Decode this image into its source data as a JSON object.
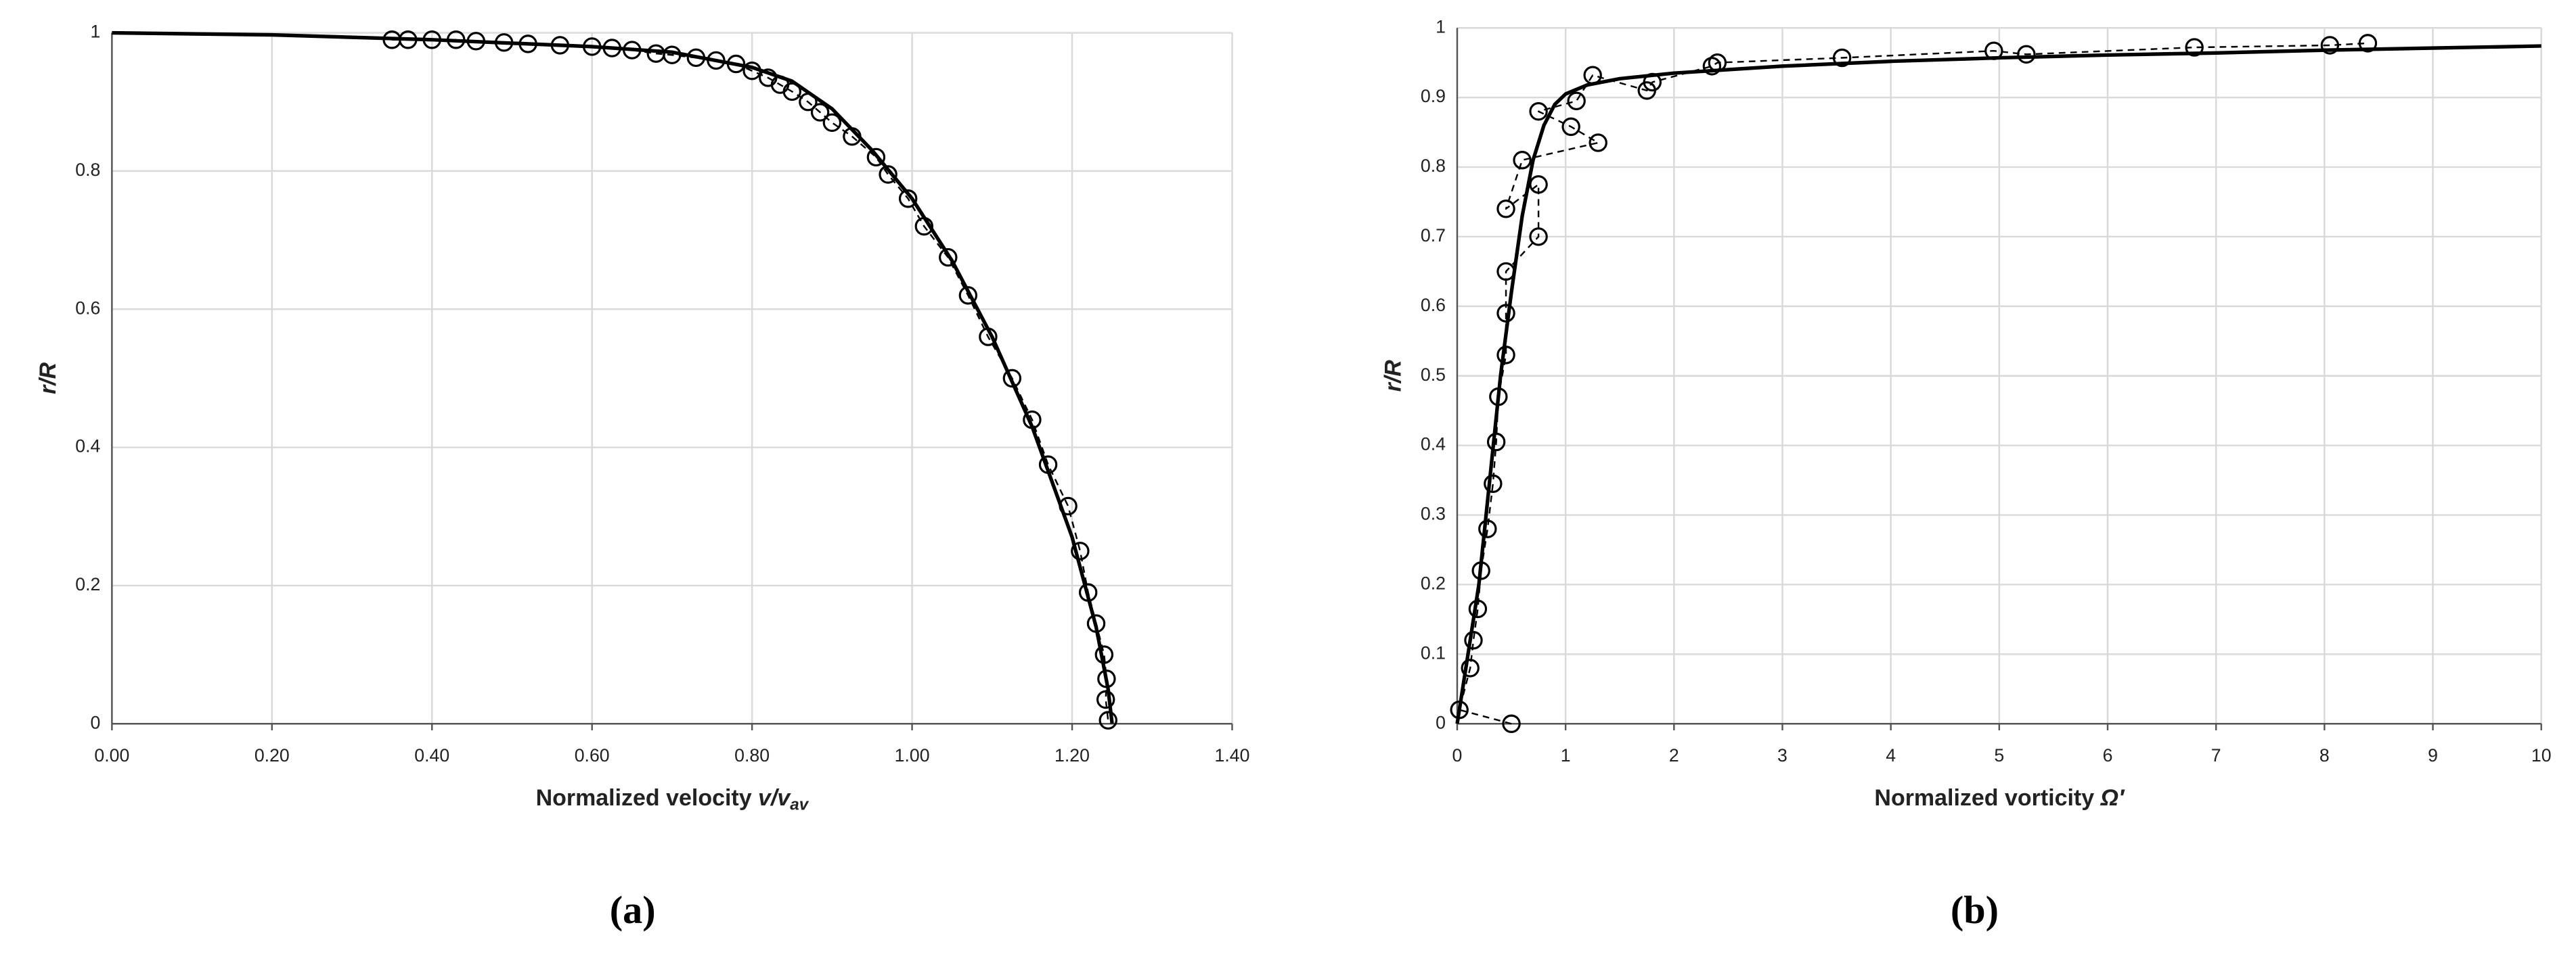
{
  "chart_data": [
    {
      "type": "line",
      "x_label": [
        "Normalized velocity ",
        "v/v",
        "av"
      ],
      "y_label": "r/R",
      "caption": "(a)",
      "xlim": [
        0,
        1.4
      ],
      "xticks": [
        {
          "value": 0,
          "label": "0.00"
        },
        {
          "value": 0.2,
          "label": "0.20"
        },
        {
          "value": 0.4,
          "label": "0.40"
        },
        {
          "value": 0.6,
          "label": "0.60"
        },
        {
          "value": 0.8,
          "label": "0.80"
        },
        {
          "value": 1,
          "label": "1.00"
        },
        {
          "value": 1.2,
          "label": "1.20"
        },
        {
          "value": 1.4,
          "label": "1.40"
        }
      ],
      "ylim": [
        0,
        1
      ],
      "yticks": [
        0,
        0.2,
        0.4,
        0.6,
        0.8,
        1
      ],
      "grid": true,
      "series": [
        {
          "color": "#000000",
          "style": "solid",
          "marker": "none",
          "x": [
            0,
            0.2,
            0.4,
            0.6,
            0.7,
            0.8,
            0.85,
            0.9,
            0.95,
            1.0,
            1.05,
            1.1,
            1.15,
            1.2,
            1.23,
            1.245,
            1.25
          ],
          "values": [
            1,
            0.997,
            0.99,
            0.98,
            0.972,
            0.95,
            0.93,
            0.89,
            0.83,
            0.76,
            0.67,
            0.56,
            0.43,
            0.27,
            0.14,
            0.05,
            0
          ]
        },
        {
          "color": "#000000",
          "style": "dashed",
          "marker": "circle",
          "x": [
            0.35,
            0.37,
            0.4,
            0.43,
            0.455,
            0.49,
            0.52,
            0.56,
            0.6,
            0.625,
            0.65,
            0.68,
            0.7,
            0.73,
            0.755,
            0.78,
            0.8,
            0.82,
            0.835,
            0.85,
            0.87,
            0.885,
            0.9,
            0.925,
            0.955,
            0.97,
            0.995,
            1.015,
            1.045,
            1.07,
            1.095,
            1.125,
            1.15,
            1.17,
            1.195,
            1.21,
            1.22,
            1.23,
            1.24,
            1.243,
            1.242,
            1.245
          ],
          "values": [
            0.99,
            0.99,
            0.99,
            0.99,
            0.988,
            0.986,
            0.984,
            0.982,
            0.98,
            0.978,
            0.975,
            0.97,
            0.968,
            0.964,
            0.96,
            0.955,
            0.945,
            0.935,
            0.925,
            0.915,
            0.9,
            0.885,
            0.87,
            0.85,
            0.82,
            0.795,
            0.76,
            0.72,
            0.675,
            0.62,
            0.56,
            0.5,
            0.44,
            0.375,
            0.315,
            0.25,
            0.19,
            0.145,
            0.1,
            0.065,
            0.035,
            0.005
          ]
        }
      ]
    },
    {
      "type": "line",
      "x_label": [
        "Normalized vorticity ",
        "Ω′"
      ],
      "y_label": "r/R",
      "caption": "(b)",
      "xlim": [
        0,
        10
      ],
      "xticks": [
        0,
        1,
        2,
        3,
        4,
        5,
        6,
        7,
        8,
        9,
        10
      ],
      "ylim": [
        0,
        1
      ],
      "yticks": [
        0,
        0.1,
        0.2,
        0.3,
        0.4,
        0.5,
        0.6,
        0.7,
        0.8,
        0.9,
        1
      ],
      "grid": true,
      "series": [
        {
          "color": "#000000",
          "style": "solid",
          "marker": "none",
          "x": [
            0,
            0.1,
            0.2,
            0.3,
            0.4,
            0.5,
            0.6,
            0.7,
            0.8,
            0.9,
            1,
            1.2,
            1.5,
            2,
            3,
            4,
            5,
            6,
            7,
            8,
            9,
            10
          ],
          "values": [
            0,
            0.1,
            0.2,
            0.35,
            0.5,
            0.62,
            0.73,
            0.81,
            0.86,
            0.89,
            0.905,
            0.918,
            0.927,
            0.935,
            0.945,
            0.952,
            0.957,
            0.961,
            0.964,
            0.968,
            0.971,
            0.974
          ]
        },
        {
          "color": "#000000",
          "style": "dashed",
          "marker": "circle",
          "x": [
            0.5,
            0.02,
            0.12,
            0.15,
            0.19,
            0.22,
            0.28,
            0.33,
            0.36,
            0.38,
            0.45,
            0.45,
            0.45,
            0.75,
            0.75,
            0.45,
            0.6,
            1.3,
            1.05,
            0.75,
            1.1,
            1.25,
            1.75,
            1.8,
            2.35,
            2.4,
            3.55,
            4.95,
            5.25,
            6.8,
            8.05,
            8.4
          ],
          "values": [
            0,
            0.02,
            0.08,
            0.12,
            0.165,
            0.22,
            0.28,
            0.345,
            0.405,
            0.47,
            0.53,
            0.59,
            0.65,
            0.7,
            0.775,
            0.74,
            0.81,
            0.835,
            0.858,
            0.88,
            0.895,
            0.932,
            0.91,
            0.922,
            0.945,
            0.95,
            0.957,
            0.967,
            0.962,
            0.972,
            0.975,
            0.978
          ]
        }
      ]
    }
  ]
}
